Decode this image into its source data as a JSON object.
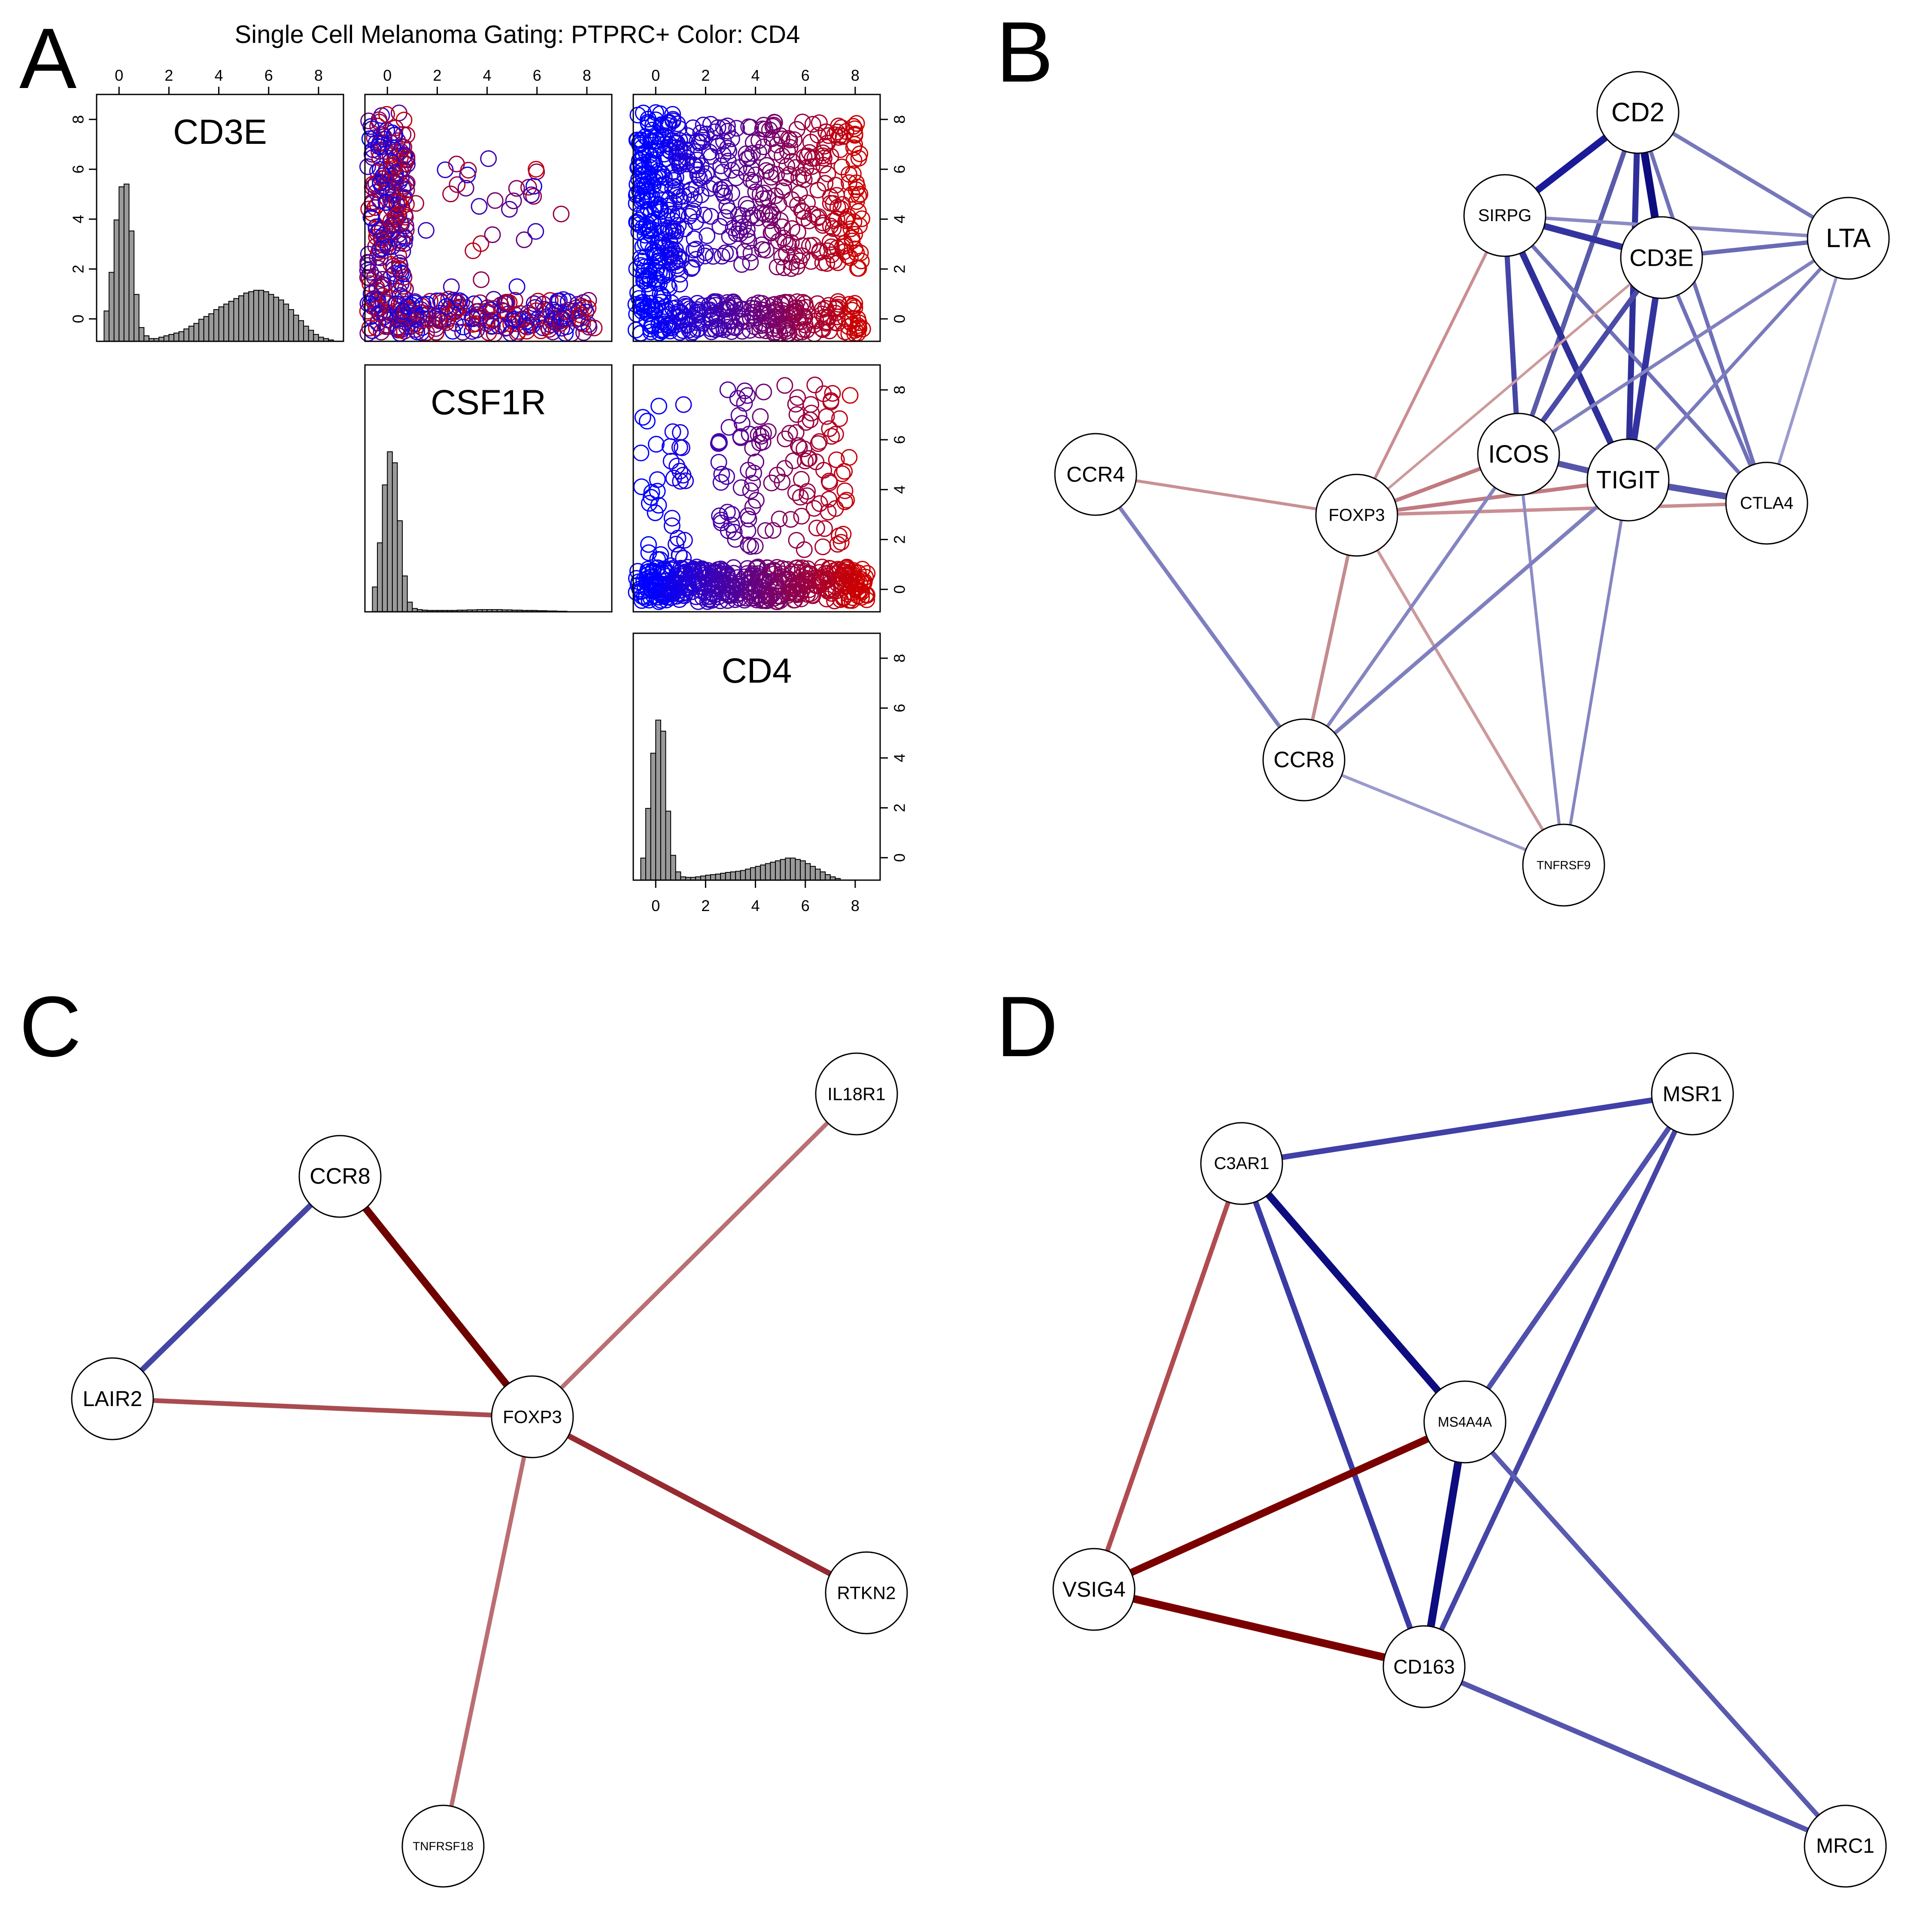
{
  "figure": {
    "panel_letters": [
      "A",
      "B",
      "C",
      "D"
    ],
    "title": "Single Cell Melanoma Gating: PTPRC+  Color: CD4"
  },
  "chart_data": {
    "type": "scatter",
    "kind": "scatterplot-matrix",
    "variables": [
      "CD3E",
      "CSF1R",
      "CD4"
    ],
    "color_by": "CD4",
    "color_scale": [
      "#0000ff",
      "#cc0000"
    ],
    "tick_values": [
      0,
      2,
      4,
      6,
      8
    ],
    "axis_range": [
      -0.9,
      9
    ],
    "histograms": {
      "bin_width": 0.2,
      "CD3E": [
        1.1,
        2.5,
        4.4,
        5.6,
        5.7,
        4.0,
        1.7,
        0.5,
        0.2,
        0.1,
        0.1,
        0.15,
        0.2,
        0.25,
        0.3,
        0.35,
        0.45,
        0.55,
        0.65,
        0.8,
        0.9,
        1.0,
        1.15,
        1.25,
        1.35,
        1.45,
        1.55,
        1.65,
        1.75,
        1.8,
        1.85,
        1.85,
        1.8,
        1.7,
        1.6,
        1.5,
        1.35,
        1.15,
        0.95,
        0.75,
        0.55,
        0.4,
        0.25,
        0.15,
        0.1,
        0.05
      ],
      "CSF1R": [
        0.9,
        2.5,
        4.6,
        5.8,
        5.4,
        3.3,
        1.3,
        0.35,
        0.12,
        0.08,
        0.06,
        0.05,
        0.05,
        0.05,
        0.05,
        0.05,
        0.05,
        0.06,
        0.06,
        0.07,
        0.07,
        0.08,
        0.08,
        0.08,
        0.08,
        0.08,
        0.07,
        0.07,
        0.06,
        0.06,
        0.05,
        0.05,
        0.05,
        0.04,
        0.04,
        0.03,
        0.03,
        0.02,
        0.02
      ],
      "CD4": [
        0.8,
        2.6,
        4.6,
        5.8,
        5.4,
        2.5,
        0.9,
        0.3,
        0.12,
        0.1,
        0.1,
        0.12,
        0.15,
        0.18,
        0.2,
        0.22,
        0.25,
        0.28,
        0.3,
        0.32,
        0.35,
        0.4,
        0.45,
        0.5,
        0.55,
        0.6,
        0.65,
        0.7,
        0.75,
        0.8,
        0.8,
        0.75,
        0.7,
        0.6,
        0.5,
        0.4,
        0.3,
        0.2,
        0.12,
        0.06
      ]
    },
    "scatter_clusters": [
      {
        "panel": "CD3E-vs-CSF1R",
        "x_range": [
          -0.8,
          0.8
        ],
        "y_range": [
          -0.6,
          8.3
        ],
        "count": 260
      },
      {
        "panel": "CD3E-vs-CSF1R",
        "x_range": [
          0.5,
          8.3
        ],
        "y_range": [
          -0.6,
          0.8
        ],
        "count": 200
      },
      {
        "panel": "CD3E-vs-CSF1R",
        "x_range": [
          1,
          7
        ],
        "y_range": [
          1.2,
          6.5
        ],
        "count": 30
      },
      {
        "panel": "CD3E-vs-CD4",
        "x_range": [
          -0.8,
          1.0
        ],
        "y_range": [
          -0.6,
          8.3
        ],
        "count": 300
      },
      {
        "panel": "CD3E-vs-CD4",
        "x_range": [
          1.0,
          8.3
        ],
        "y_range": [
          2.0,
          7.9
        ],
        "count": 320
      },
      {
        "panel": "CD3E-vs-CD4",
        "x_range": [
          1.0,
          8.3
        ],
        "y_range": [
          -0.6,
          0.7
        ],
        "count": 200
      },
      {
        "panel": "CSF1R-vs-CD4",
        "x_range": [
          -0.8,
          8.5
        ],
        "y_range": [
          -0.5,
          0.9
        ],
        "count": 420
      },
      {
        "panel": "CSF1R-vs-CD4",
        "x_range": [
          2.5,
          7.8
        ],
        "y_range": [
          1.5,
          8.2
        ],
        "count": 120
      },
      {
        "panel": "CSF1R-vs-CD4",
        "x_range": [
          -0.6,
          1.2
        ],
        "y_range": [
          0.9,
          7.5
        ],
        "count": 40
      }
    ]
  },
  "networks": {
    "B": {
      "nodes": [
        {
          "id": "CD2",
          "label": "CD2"
        },
        {
          "id": "SIRPG",
          "label": "SIRPG"
        },
        {
          "id": "CD3E",
          "label": "CD3E"
        },
        {
          "id": "LTA",
          "label": "LTA"
        },
        {
          "id": "CCR4",
          "label": "CCR4"
        },
        {
          "id": "FOXP3",
          "label": "FOXP3"
        },
        {
          "id": "ICOS",
          "label": "ICOS"
        },
        {
          "id": "TIGIT",
          "label": "TIGIT"
        },
        {
          "id": "CTLA4",
          "label": "CTLA4"
        },
        {
          "id": "CCR8",
          "label": "CCR8"
        },
        {
          "id": "TNFRSF9",
          "label": "TNFRSF9"
        }
      ],
      "edges": [
        [
          "CD2",
          "SIRPG",
          "#1a1a99",
          16
        ],
        [
          "CD2",
          "CD3E",
          "#0d0d80",
          18
        ],
        [
          "CD2",
          "LTA",
          "#7777bb",
          9
        ],
        [
          "CD2",
          "ICOS",
          "#5a5aaa",
          11
        ],
        [
          "CD2",
          "TIGIT",
          "#2f2f9a",
          14
        ],
        [
          "CD2",
          "CTLA4",
          "#7070b8",
          9
        ],
        [
          "SIRPG",
          "CD3E",
          "#3333a0",
          15
        ],
        [
          "SIRPG",
          "LTA",
          "#8a8ac4",
          8
        ],
        [
          "SIRPG",
          "ICOS",
          "#4545a5",
          12
        ],
        [
          "SIRPG",
          "TIGIT",
          "#2f2f9a",
          15
        ],
        [
          "SIRPG",
          "CTLA4",
          "#7070b8",
          9
        ],
        [
          "SIRPG",
          "FOXP3",
          "#c98e92",
          7
        ],
        [
          "CD3E",
          "LTA",
          "#6a6ab4",
          10
        ],
        [
          "CD3E",
          "ICOS",
          "#4a4aa8",
          12
        ],
        [
          "CD3E",
          "TIGIT",
          "#3333a0",
          15
        ],
        [
          "CD3E",
          "CTLA4",
          "#7070b8",
          9
        ],
        [
          "CD3E",
          "FOXP3",
          "#cc9a9c",
          6
        ],
        [
          "LTA",
          "ICOS",
          "#8080c0",
          8
        ],
        [
          "LTA",
          "TIGIT",
          "#7a7abd",
          8
        ],
        [
          "LTA",
          "CTLA4",
          "#9a9acc",
          7
        ],
        [
          "CCR4",
          "FOXP3",
          "#c99094",
          7
        ],
        [
          "CCR4",
          "CCR8",
          "#7f7fbf",
          9
        ],
        [
          "FOXP3",
          "ICOS",
          "#c07a80",
          9
        ],
        [
          "FOXP3",
          "TIGIT",
          "#c07a80",
          9
        ],
        [
          "FOXP3",
          "CTLA4",
          "#c98e92",
          8
        ],
        [
          "FOXP3",
          "CCR8",
          "#c48a8e",
          8
        ],
        [
          "FOXP3",
          "TNFRSF9",
          "#cc9a9c",
          7
        ],
        [
          "ICOS",
          "TIGIT",
          "#5555aa",
          14
        ],
        [
          "ICOS",
          "CCR8",
          "#8585c2",
          8
        ],
        [
          "ICOS",
          "TNFRSF9",
          "#8c8cc6",
          7
        ],
        [
          "TIGIT",
          "CTLA4",
          "#5555aa",
          15
        ],
        [
          "TIGIT",
          "CCR8",
          "#7f7fbf",
          9
        ],
        [
          "TIGIT",
          "TNFRSF9",
          "#8585c2",
          7
        ],
        [
          "CCR8",
          "TNFRSF9",
          "#9a9acc",
          7
        ]
      ]
    },
    "C": {
      "nodes": [
        {
          "id": "IL18R1",
          "label": "IL18R1"
        },
        {
          "id": "CCR8",
          "label": "CCR8"
        },
        {
          "id": "LAIR2",
          "label": "LAIR2"
        },
        {
          "id": "FOXP3",
          "label": "FOXP3"
        },
        {
          "id": "RTKN2",
          "label": "RTKN2"
        },
        {
          "id": "TNFRSF18",
          "label": "TNFRSF18"
        }
      ],
      "edges": [
        [
          "CCR8",
          "FOXP3",
          "#6e0000",
          17
        ],
        [
          "CCR8",
          "LAIR2",
          "#4545a5",
          13
        ],
        [
          "LAIR2",
          "FOXP3",
          "#a84c50",
          11
        ],
        [
          "FOXP3",
          "IL18R1",
          "#b87075",
          10
        ],
        [
          "FOXP3",
          "RTKN2",
          "#962a30",
          13
        ],
        [
          "FOXP3",
          "TNFRSF18",
          "#bb6e72",
          10
        ]
      ]
    },
    "D": {
      "nodes": [
        {
          "id": "MSR1",
          "label": "MSR1"
        },
        {
          "id": "C3AR1",
          "label": "C3AR1"
        },
        {
          "id": "MS4A4A",
          "label": "MS4A4A"
        },
        {
          "id": "VSIG4",
          "label": "VSIG4"
        },
        {
          "id": "CD163",
          "label": "CD163"
        },
        {
          "id": "MRC1",
          "label": "MRC1"
        }
      ],
      "edges": [
        [
          "C3AR1",
          "MSR1",
          "#4040a8",
          13
        ],
        [
          "C3AR1",
          "MS4A4A",
          "#0d0d80",
          17
        ],
        [
          "C3AR1",
          "CD163",
          "#3a3aa5",
          13
        ],
        [
          "C3AR1",
          "VSIG4",
          "#b04c50",
          11
        ],
        [
          "MSR1",
          "MS4A4A",
          "#5050ae",
          12
        ],
        [
          "MSR1",
          "CD163",
          "#4545a8",
          12
        ],
        [
          "MS4A4A",
          "VSIG4",
          "#7a0000",
          17
        ],
        [
          "MS4A4A",
          "CD163",
          "#0d0d80",
          18
        ],
        [
          "MS4A4A",
          "MRC1",
          "#5a5ab0",
          11
        ],
        [
          "VSIG4",
          "CD163",
          "#7a0000",
          18
        ],
        [
          "CD163",
          "MRC1",
          "#5555ad",
          12
        ]
      ]
    }
  }
}
